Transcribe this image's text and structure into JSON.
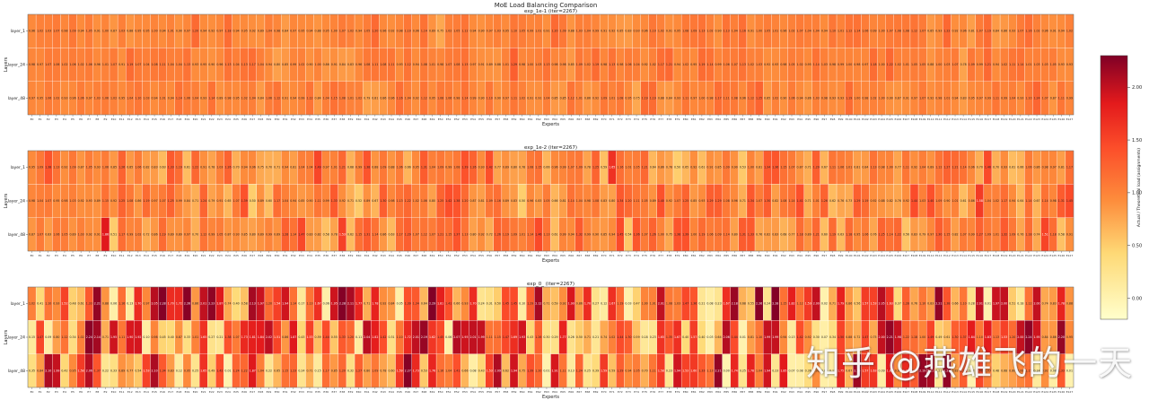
{
  "figure": {
    "suptitle": "MoE Load Balancing Comparison",
    "colorbar_label": "Actual / Theoretical load (assignments)",
    "watermark": "知乎 @燕雄飞的一天"
  },
  "chart_data": [
    {
      "type": "heatmap",
      "title": "exp_1e-1 (iter=2267)",
      "xlabel": "Experts",
      "ylabel": "Layers",
      "rows": [
        "layer_1",
        "layer_24",
        "layer_48"
      ],
      "num_experts": 128,
      "expert_label_prefix": "E",
      "value_range": [
        0.75,
        1.35
      ],
      "seed": 11,
      "known_values": [
        [
          0.96,
          1.02,
          1.03,
          1.07,
          0.98,
          1.09,
          0.94,
          1.05,
          0.91,
          1.0
        ],
        [
          0.98,
          0.97,
          1.07,
          1.06,
          1.02,
          1.06,
          1.02,
          1.06,
          0.96,
          1.01
        ],
        [
          0.97,
          0.95,
          1.06,
          1.02,
          0.93,
          0.96,
          1.06,
          0.97,
          1.03,
          1.06
        ]
      ]
    },
    {
      "type": "heatmap",
      "title": "exp_1e-2 (iter=2267)",
      "xlabel": "Experts",
      "ylabel": "Layers",
      "rows": [
        "layer_1",
        "layer_24",
        "layer_48"
      ],
      "num_experts": 128,
      "expert_label_prefix": "E",
      "value_range": [
        0.5,
        1.9
      ],
      "seed": 23,
      "known_values": [
        [
          0.95,
          1.09,
          1.38,
          1.13,
          0.92,
          1.09,
          0.87,
          1.05,
          0.93,
          1.06
        ],
        [
          0.98,
          1.04,
          1.07,
          0.95,
          0.98,
          1.03,
          0.92,
          0.93,
          0.89,
          1.15
        ],
        [
          0.87,
          1.07,
          0.83,
          1.06,
          1.05,
          0.89,
          1.03,
          0.92,
          0.91,
          1.86
        ]
      ]
    },
    {
      "type": "heatmap",
      "title": "exp_0_ (iter=2267)",
      "xlabel": "Experts",
      "ylabel": "Layers",
      "rows": [
        "layer_1",
        "layer_24",
        "layer_48"
      ],
      "num_experts": 128,
      "expert_label_prefix": "E",
      "value_range": [
        0.0,
        2.3
      ],
      "seed": 37,
      "known_values": [
        [
          1.02,
          0.41,
          1.1,
          0.93,
          1.52,
          0.48,
          0.61,
          1.33,
          2.21,
          0.88
        ],
        [
          0.15,
          1.47,
          0.09,
          0.8,
          1.12,
          0.34,
          1.02,
          2.24,
          2.14,
          0.71
        ],
        [
          0.35,
          0.84,
          2.1,
          1.99,
          0.42,
          0.95,
          1.58,
          2.06,
          1.37,
          0.22
        ]
      ]
    }
  ],
  "colorbar": {
    "range": [
      -0.2,
      2.3
    ],
    "ticks": [
      0.0,
      0.5,
      1.0,
      1.5,
      2.0
    ],
    "tick_labels": [
      "0.00",
      "0.50",
      "1.00",
      "1.50",
      "2.00"
    ]
  }
}
